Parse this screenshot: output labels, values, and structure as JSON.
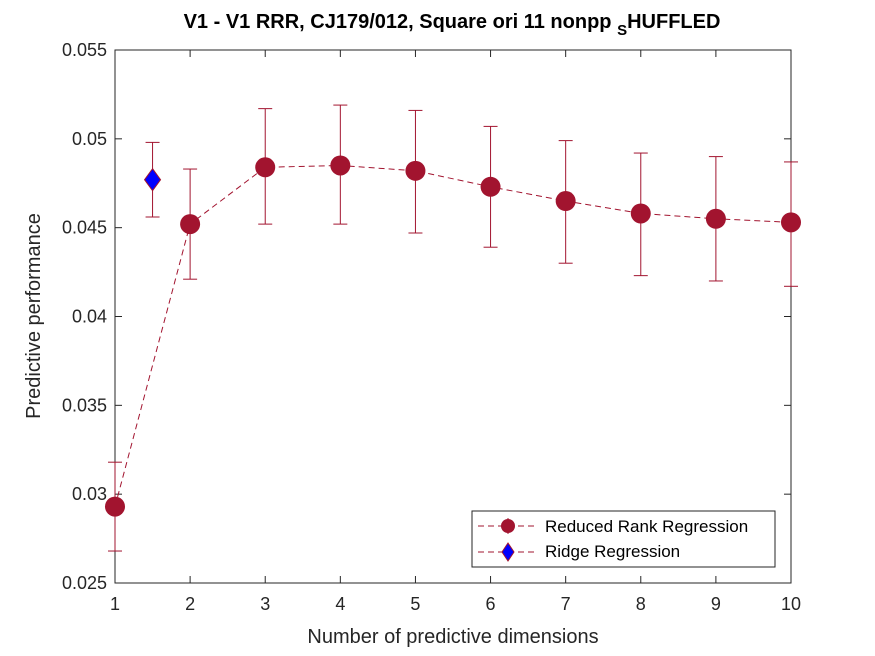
{
  "chart_data": {
    "type": "line",
    "title": {
      "main": "V1 - V1 RRR, CJ179/012, Square ori 11 nonpp ",
      "subscript": "S",
      "suffix": "HUFFLED"
    },
    "xlabel": "Number of predictive dimensions",
    "ylabel": "Predictive performance",
    "xlim": [
      1,
      10
    ],
    "ylim": [
      0.025,
      0.055
    ],
    "xticks": [
      "1",
      "2",
      "3",
      "4",
      "5",
      "6",
      "7",
      "8",
      "9",
      "10"
    ],
    "yticks": [
      "0.025",
      "0.03",
      "0.035",
      "0.04",
      "0.045",
      "0.05",
      "0.055"
    ],
    "grid": false,
    "legend_position": "bottom-right",
    "series": [
      {
        "name": "Reduced Rank Regression",
        "color": "#A2142F",
        "marker": "circle",
        "line_style": "dashed",
        "x": [
          1,
          2,
          3,
          4,
          5,
          6,
          7,
          8,
          9,
          10
        ],
        "y": [
          0.0293,
          0.0452,
          0.0484,
          0.0485,
          0.0482,
          0.0473,
          0.0465,
          0.0458,
          0.0455,
          0.0453
        ],
        "err_low": [
          0.0268,
          0.0421,
          0.0452,
          0.0452,
          0.0447,
          0.0439,
          0.043,
          0.0423,
          0.042,
          0.0417
        ],
        "err_high": [
          0.0318,
          0.0483,
          0.0517,
          0.0519,
          0.0516,
          0.0507,
          0.0499,
          0.0492,
          0.049,
          0.0487
        ]
      },
      {
        "name": "Ridge Regression",
        "color": "#0000FF",
        "edge_color": "#A2142F",
        "marker": "diamond",
        "line_style": "dashed",
        "x": [
          1.5
        ],
        "y": [
          0.0477
        ],
        "err_low": [
          0.0456
        ],
        "err_high": [
          0.0498
        ]
      }
    ]
  }
}
